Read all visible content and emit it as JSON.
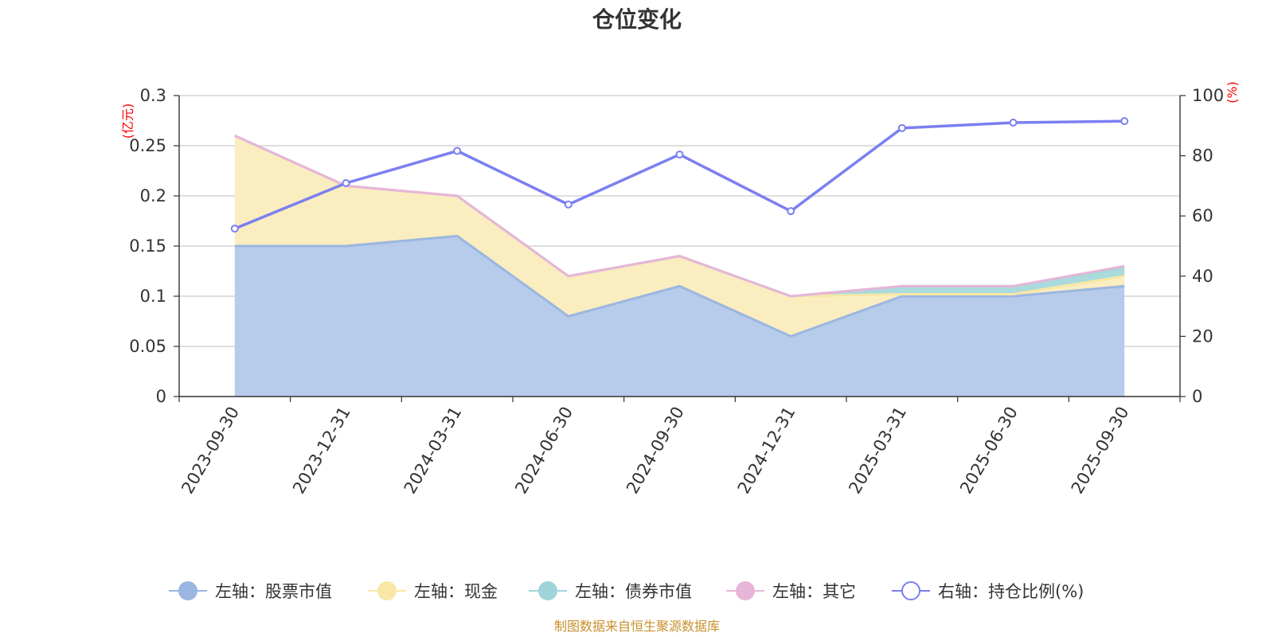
{
  "chart_data": {
    "type": "area",
    "title": "仓位变化",
    "categories": [
      "2023-09-30",
      "2023-12-31",
      "2024-03-31",
      "2024-06-30",
      "2024-09-30",
      "2024-12-31",
      "2025-03-31",
      "2025-06-30",
      "2025-09-30"
    ],
    "left_axis": {
      "unit": "(亿元)",
      "min": 0,
      "max": 0.3,
      "ticks": [
        "0",
        "0.05",
        "0.1",
        "0.15",
        "0.2",
        "0.25",
        "0.3"
      ]
    },
    "right_axis": {
      "unit": "(%)",
      "min": 0,
      "max": 100,
      "ticks": [
        "0",
        "20",
        "40",
        "60",
        "80",
        "100"
      ]
    },
    "series": [
      {
        "name": "左轴：股票市值",
        "axis": "left",
        "stack": true,
        "color": "#9bb6e0",
        "fill": "#b7cbea",
        "values": [
          0.15,
          0.15,
          0.16,
          0.08,
          0.11,
          0.06,
          0.1,
          0.1,
          0.11
        ]
      },
      {
        "name": "左轴：现金",
        "axis": "left",
        "stack": true,
        "color": "#f9e7a6",
        "fill": "#faedc0",
        "values": [
          0.11,
          0.06,
          0.04,
          0.04,
          0.03,
          0.04,
          0.002,
          0.002,
          0.01
        ]
      },
      {
        "name": "左轴：债券市值",
        "axis": "left",
        "stack": true,
        "color": "#9ed5d8",
        "fill": "#a9dbdc",
        "values": [
          0,
          0,
          0,
          0,
          0,
          0,
          0.008,
          0.008,
          0.009
        ]
      },
      {
        "name": "左轴：其它",
        "axis": "left",
        "stack": true,
        "color": "#e7b5d8",
        "fill": "#f0cde6",
        "values": [
          0,
          0,
          0,
          0,
          0,
          0,
          0,
          0,
          0.001
        ]
      },
      {
        "name": "右轴：持仓比例(%)",
        "axis": "right",
        "stack": false,
        "color": "#7b7ff0",
        "values": [
          55.8,
          70.9,
          81.6,
          63.8,
          80.4,
          61.6,
          89.2,
          91.0,
          91.5
        ]
      }
    ],
    "legend_position": "bottom",
    "grid": true
  },
  "source_note": "制图数据来自恒生聚源数据库"
}
